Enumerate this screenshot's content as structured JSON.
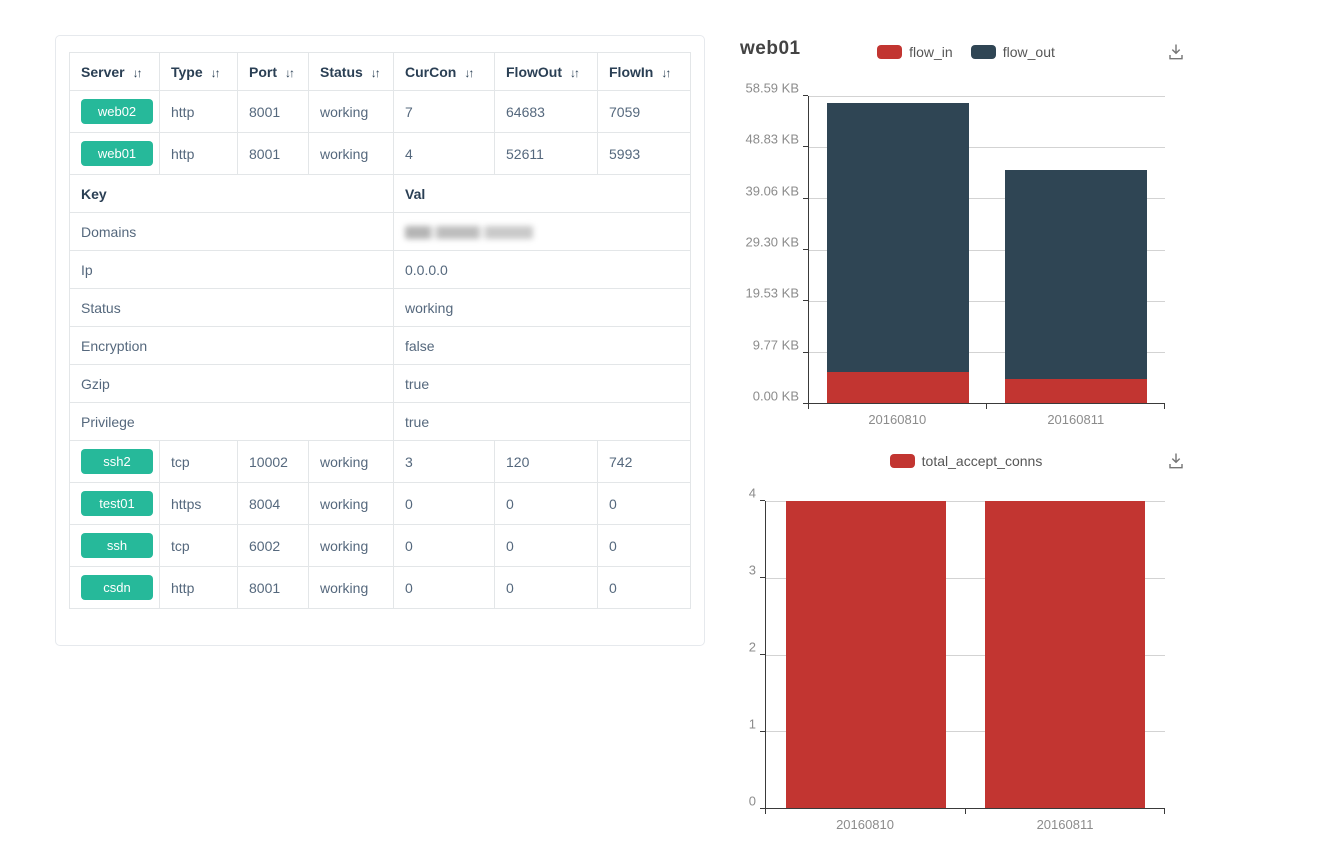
{
  "table": {
    "columns": [
      {
        "label": "Server",
        "sortable": true
      },
      {
        "label": "Type",
        "sortable": true
      },
      {
        "label": "Port",
        "sortable": true
      },
      {
        "label": "Status",
        "sortable": true
      },
      {
        "label": "CurCon",
        "sortable": true
      },
      {
        "label": "FlowOut",
        "sortable": true
      },
      {
        "label": "FlowIn",
        "sortable": true
      }
    ],
    "rows_top": [
      {
        "server": "web02",
        "type": "http",
        "port": "8001",
        "status": "working",
        "curcon": "7",
        "flowout": "64683",
        "flowin": "7059"
      },
      {
        "server": "web01",
        "type": "http",
        "port": "8001",
        "status": "working",
        "curcon": "4",
        "flowout": "52611",
        "flowin": "5993"
      }
    ],
    "kv": {
      "key_header": "Key",
      "val_header": "Val",
      "rows": [
        {
          "key": "Domains",
          "value": "",
          "redacted": true
        },
        {
          "key": "Ip",
          "value": "0.0.0.0"
        },
        {
          "key": "Status",
          "value": "working"
        },
        {
          "key": "Encryption",
          "value": "false"
        },
        {
          "key": "Gzip",
          "value": "true"
        },
        {
          "key": "Privilege",
          "value": "true"
        }
      ]
    },
    "rows_bottom": [
      {
        "server": "ssh2",
        "type": "tcp",
        "port": "10002",
        "status": "working",
        "curcon": "3",
        "flowout": "120",
        "flowin": "742"
      },
      {
        "server": "test01",
        "type": "https",
        "port": "8004",
        "status": "working",
        "curcon": "0",
        "flowout": "0",
        "flowin": "0"
      },
      {
        "server": "ssh",
        "type": "tcp",
        "port": "6002",
        "status": "working",
        "curcon": "0",
        "flowout": "0",
        "flowin": "0"
      },
      {
        "server": "csdn",
        "type": "http",
        "port": "8001",
        "status": "working",
        "curcon": "0",
        "flowout": "0",
        "flowin": "0"
      }
    ],
    "button_color": "#26B99A"
  },
  "chart_data": [
    {
      "type": "bar",
      "stacked": true,
      "title": "web01",
      "categories": [
        "20160810",
        "20160811"
      ],
      "series": [
        {
          "name": "flow_in",
          "color": "#c23531",
          "values": [
            5.85,
            4.6
          ]
        },
        {
          "name": "flow_out",
          "color": "#2f4554",
          "values": [
            51.4,
            39.8
          ]
        }
      ],
      "y_unit": "KB",
      "ylim": [
        0,
        58.59
      ],
      "y_ticks": [
        "0.00 KB",
        "9.77 KB",
        "19.53 KB",
        "29.30 KB",
        "39.06 KB",
        "48.83 KB",
        "58.59 KB"
      ],
      "legend_position": "top-center",
      "grid": true,
      "toolbox_icon": "save-as-image"
    },
    {
      "type": "bar",
      "stacked": false,
      "title": "",
      "categories": [
        "20160810",
        "20160811"
      ],
      "series": [
        {
          "name": "total_accept_conns",
          "color": "#c23531",
          "values": [
            4,
            4
          ]
        }
      ],
      "ylim": [
        0,
        4
      ],
      "y_ticks": [
        "0",
        "1",
        "2",
        "3",
        "4"
      ],
      "legend_position": "top-center",
      "grid": true,
      "toolbox_icon": "save-as-image"
    }
  ]
}
